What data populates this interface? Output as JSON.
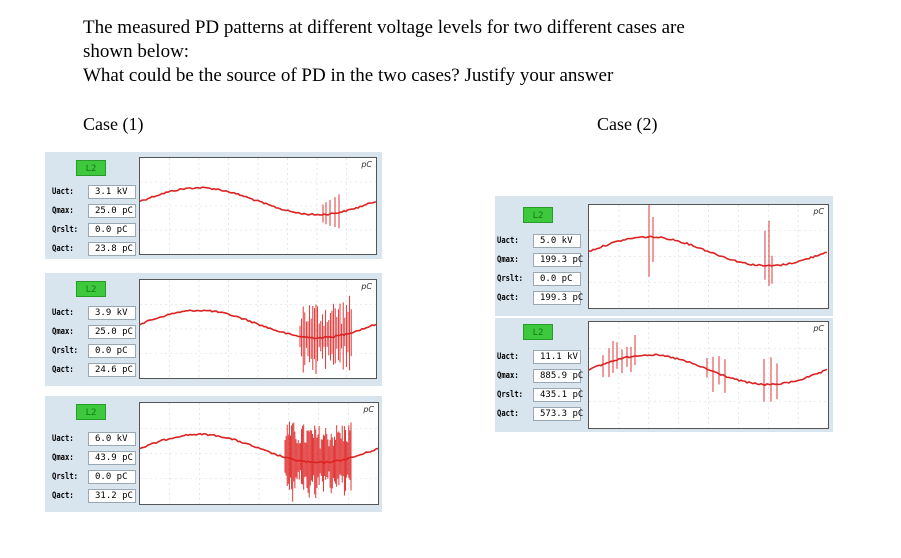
{
  "question": {
    "line1": "The measured PD patterns at different voltage levels for two different cases are",
    "line2": "shown below:",
    "line3": "What could be the source of PD in the two cases? Justify your answer"
  },
  "case1": {
    "label": "Case (1)",
    "panels": [
      {
        "tag": "L2",
        "unit": "pC",
        "uact_label": "Uact:",
        "uact": "3.1 kV",
        "qmax_label": "Qmax:",
        "qmax": "25.0 pC",
        "qrslt_label": "Qrslt:",
        "qrslt": "0.0 pC",
        "qact_label": "Qact:",
        "qact": "23.8 pC"
      },
      {
        "tag": "L2",
        "unit": "pC",
        "uact_label": "Uact:",
        "uact": "3.9 kV",
        "qmax_label": "Qmax:",
        "qmax": "25.0 pC",
        "qrslt_label": "Qrslt:",
        "qrslt": "0.0 pC",
        "qact_label": "Qact:",
        "qact": "24.6 pC"
      },
      {
        "tag": "L2",
        "unit": "pC",
        "uact_label": "Uact:",
        "uact": "6.0 kV",
        "qmax_label": "Qmax:",
        "qmax": "43.9 pC",
        "qrslt_label": "Qrslt:",
        "qrslt": "0.0 pC",
        "qact_label": "Qact:",
        "qact": "31.2 pC"
      }
    ]
  },
  "case2": {
    "label": "Case (2)",
    "panels": [
      {
        "tag": "L2",
        "unit": "pC",
        "uact_label": "Uact:",
        "uact": "5.0 kV",
        "qmax_label": "Qmax:",
        "qmax": "199.3 pC",
        "qrslt_label": "Qrslt:",
        "qrslt": "0.0 pC",
        "qact_label": "Qact:",
        "qact": "199.3 pC"
      },
      {
        "tag": "L2",
        "unit": "pC",
        "uact_label": "Uact:",
        "uact": "11.1 kV",
        "qmax_label": "Qmax:",
        "qmax": "885.9 pC",
        "qrslt_label": "Qrslt:",
        "qrslt": "435.1 pC",
        "qact_label": "Qact:",
        "qact": "573.3 pC"
      }
    ]
  },
  "colors": {
    "trace": "#dd2222",
    "tag": "#3ec83e",
    "panel_bg": "#d8e4ee"
  }
}
